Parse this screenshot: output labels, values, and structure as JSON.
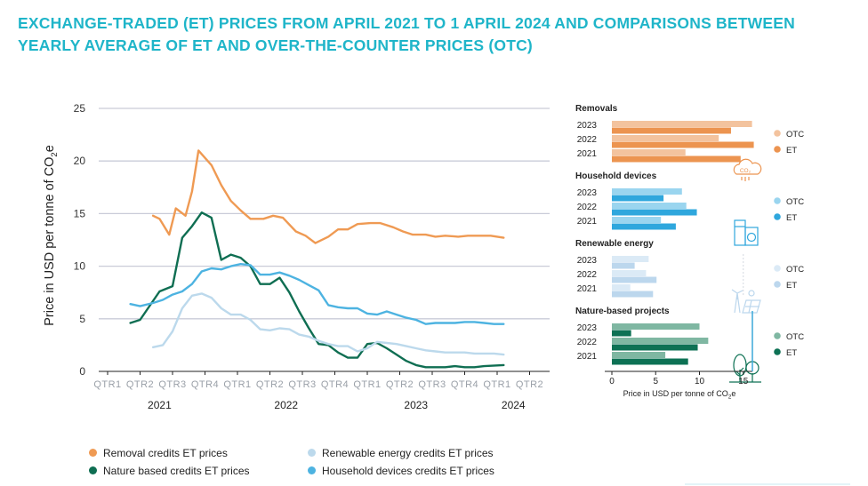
{
  "title": "EXCHANGE-TRADED (ET) PRICES FROM APRIL 2021 TO 1 APRIL 2024 AND COMPARISONS BETWEEN YEARLY AVERAGE OF ET AND OVER-THE-COUNTER PRICES (OTC)",
  "chart_data": [
    {
      "type": "line",
      "ylabel_main": "Price in USD per tonne of CO",
      "ylabel_sub": "2",
      "ylabel_tail": "e",
      "ylim": [
        0,
        25
      ],
      "yticks": [
        "0",
        "5",
        "10",
        "15",
        "20",
        "25"
      ],
      "quarter_labels": [
        "QTR1",
        "QTR2",
        "QTR3",
        "QTR4",
        "QTR1",
        "QTR2",
        "QTR3",
        "QTR4",
        "QTR1",
        "QTR2",
        "QTR3",
        "QTR4",
        "QTR1",
        "QTR2"
      ],
      "year_labels": [
        "2021",
        "2022",
        "2023",
        "2024"
      ],
      "grid": true,
      "series": [
        {
          "name": "Removal credits ET prices",
          "color": "#ef9a53",
          "x": [
            2.4,
            2.6,
            2.9,
            3.1,
            3.4,
            3.6,
            3.8,
            4.2,
            4.5,
            4.8,
            5.1,
            5.4,
            5.8,
            6.1,
            6.4,
            6.8,
            7.1,
            7.4,
            7.8,
            8.1,
            8.4,
            8.7,
            9.1,
            9.4,
            9.8,
            10.1,
            10.4,
            10.8,
            11.1,
            11.4,
            11.8,
            12.1,
            12.4,
            12.8,
            13.2
          ],
          "y": [
            14.8,
            14.5,
            13.0,
            15.5,
            14.8,
            17.1,
            21.0,
            19.6,
            17.7,
            16.2,
            15.3,
            14.5,
            14.5,
            14.8,
            14.6,
            13.3,
            12.9,
            12.2,
            12.8,
            13.5,
            13.5,
            14.0,
            14.1,
            14.1,
            13.7,
            13.3,
            13.0,
            13.0,
            12.8,
            12.9,
            12.8,
            12.9,
            12.9,
            12.9,
            12.7
          ]
        },
        {
          "name": "Nature based credits ET prices",
          "color": "#0f6e52",
          "x": [
            1.7,
            2.0,
            2.6,
            3.0,
            3.3,
            3.6,
            3.9,
            4.2,
            4.5,
            4.8,
            5.1,
            5.4,
            5.7,
            6.0,
            6.3,
            6.6,
            6.9,
            7.2,
            7.5,
            7.8,
            8.1,
            8.4,
            8.7,
            9.0,
            9.3,
            9.6,
            9.9,
            10.2,
            10.5,
            10.8,
            11.1,
            11.4,
            11.7,
            12.0,
            12.3,
            12.6,
            13.2
          ],
          "y": [
            4.6,
            4.9,
            7.6,
            8.1,
            12.7,
            13.8,
            15.1,
            14.6,
            10.6,
            11.1,
            10.8,
            10.0,
            8.3,
            8.3,
            8.9,
            7.5,
            5.7,
            4.1,
            2.6,
            2.5,
            1.8,
            1.3,
            1.3,
            2.6,
            2.7,
            2.2,
            1.6,
            1.0,
            0.6,
            0.4,
            0.4,
            0.4,
            0.5,
            0.4,
            0.4,
            0.5,
            0.6
          ]
        },
        {
          "name": "Renewable energy credits ET prices",
          "color": "#bcd9ec",
          "x": [
            2.4,
            2.7,
            3.0,
            3.3,
            3.6,
            3.9,
            4.2,
            4.5,
            4.8,
            5.1,
            5.4,
            5.7,
            6.0,
            6.3,
            6.6,
            6.9,
            7.2,
            7.5,
            7.8,
            8.1,
            8.4,
            8.7,
            9.0,
            9.3,
            9.6,
            9.9,
            10.2,
            10.5,
            10.8,
            11.1,
            11.4,
            11.7,
            12.0,
            12.3,
            12.6,
            12.9,
            13.2
          ],
          "y": [
            2.3,
            2.5,
            3.8,
            6.0,
            7.2,
            7.4,
            7.0,
            6.0,
            5.4,
            5.4,
            4.9,
            4.0,
            3.9,
            4.1,
            4.0,
            3.5,
            3.3,
            2.9,
            2.6,
            2.4,
            2.4,
            1.9,
            2.2,
            2.8,
            2.7,
            2.6,
            2.4,
            2.2,
            2.0,
            1.9,
            1.8,
            1.8,
            1.8,
            1.7,
            1.7,
            1.7,
            1.6
          ]
        },
        {
          "name": "Household devices credits ET prices",
          "color": "#4db3e1",
          "x": [
            1.7,
            2.0,
            2.4,
            2.7,
            3.0,
            3.3,
            3.6,
            3.9,
            4.2,
            4.5,
            4.8,
            5.1,
            5.4,
            5.7,
            6.0,
            6.3,
            6.6,
            6.9,
            7.2,
            7.5,
            7.8,
            8.1,
            8.4,
            8.7,
            9.0,
            9.3,
            9.6,
            9.9,
            10.2,
            10.5,
            10.8,
            11.1,
            11.4,
            11.7,
            12.0,
            12.3,
            12.6,
            12.9,
            13.2
          ],
          "y": [
            6.4,
            6.2,
            6.5,
            6.8,
            7.3,
            7.6,
            8.3,
            9.5,
            9.8,
            9.7,
            10.0,
            10.2,
            10.1,
            9.2,
            9.2,
            9.4,
            9.1,
            8.7,
            8.2,
            7.7,
            6.3,
            6.1,
            6.0,
            6.0,
            5.5,
            5.4,
            5.7,
            5.4,
            5.1,
            4.9,
            4.5,
            4.6,
            4.6,
            4.6,
            4.7,
            4.7,
            4.6,
            4.5,
            4.5
          ]
        }
      ]
    },
    {
      "type": "bar",
      "orientation": "horizontal",
      "xlabel_main": "Price in USD per tonne of CO",
      "xlabel_sub": "2",
      "xlabel_tail": "e",
      "xlim": [
        0,
        16
      ],
      "xticks": [
        "0",
        "5",
        "10",
        "15"
      ],
      "years": [
        "2023",
        "2022",
        "2021"
      ],
      "groups": [
        {
          "title": "Removals",
          "icon": "co2-cloud-icon",
          "otc_color": "#f3c39e",
          "et_color": "#ec9450",
          "otc": [
            16.0,
            12.2,
            8.4
          ],
          "et": [
            13.6,
            16.2,
            14.7
          ],
          "legend": [
            "OTC",
            "ET"
          ]
        },
        {
          "title": "Household devices",
          "icon": "washing-machine-icon",
          "otc_color": "#9ad5ef",
          "et_color": "#2fa7dd",
          "otc": [
            8.0,
            8.5,
            5.6
          ],
          "et": [
            5.9,
            9.7,
            7.3
          ],
          "legend": [
            "OTC",
            "ET"
          ]
        },
        {
          "title": "Renewable energy",
          "icon": "wind-solar-icon",
          "otc_color": "#dbeaf6",
          "et_color": "#bcd7ed",
          "otc": [
            4.2,
            3.9,
            2.1
          ],
          "et": [
            2.6,
            5.1,
            4.7
          ],
          "legend": [
            "OTC",
            "ET"
          ]
        },
        {
          "title": "Nature-based projects",
          "icon": "trees-icon",
          "otc_color": "#7fb7a2",
          "et_color": "#0d7154",
          "otc": [
            10.0,
            11.0,
            6.1
          ],
          "et": [
            2.2,
            9.8,
            8.7
          ],
          "legend": [
            "OTC",
            "ET"
          ]
        }
      ]
    }
  ]
}
